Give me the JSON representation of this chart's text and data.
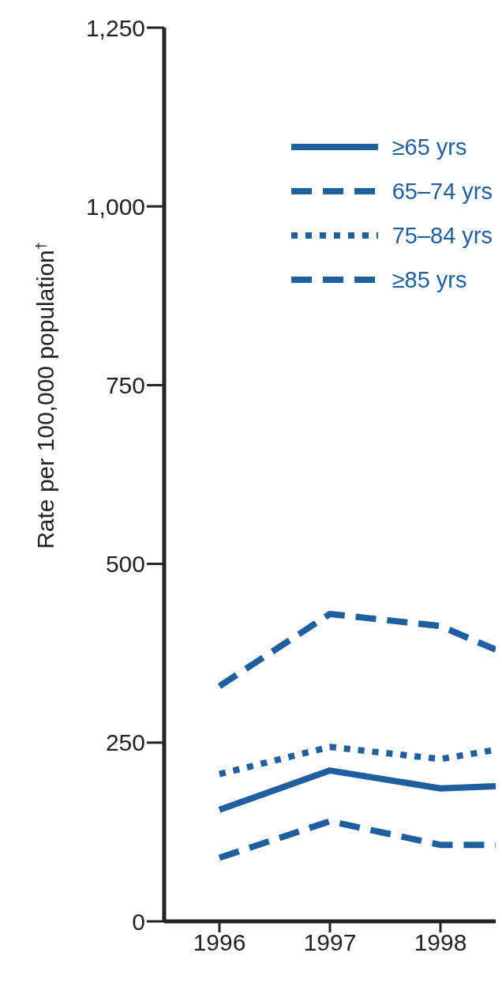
{
  "chart_data": {
    "type": "line",
    "ylabel": "Rate per 100,000 population$^{†}$",
    "x": [
      1996,
      1997,
      1998,
      1998.5
    ],
    "xlim": [
      1995.5,
      1998.5
    ],
    "xticks": [
      1996,
      1997,
      1998
    ],
    "ylim": [
      0,
      1250
    ],
    "yticks": [
      0,
      {
        "value": 250,
        "label": "250"
      },
      {
        "value": 500,
        "label": "500"
      },
      {
        "value": 750,
        "label": "750"
      },
      {
        "value": 1000,
        "label": "1,000"
      },
      {
        "value": 1250,
        "label": "1,250"
      }
    ],
    "grid": false,
    "legend": "top right",
    "marker": "none",
    "series": [
      {
        "name": "≥65 yrs",
        "color": "#1f5f9f",
        "line_style": "solid",
        "values": [
          156,
          211,
          186,
          189
        ]
      },
      {
        "name": "65–74 yrs",
        "color": "#1f5f9f",
        "line_style": "dashed",
        "values": [
          89,
          140,
          107,
          107
        ]
      },
      {
        "name": "75–84 yrs",
        "color": "#1f5f9f",
        "line_style": "dotted",
        "values": [
          206,
          244,
          227,
          240
        ]
      },
      {
        "name": "≥85 yrs",
        "color": "#1f5f9f",
        "line_style": "dashed",
        "values": [
          329,
          430,
          413,
          380
        ]
      }
    ]
  }
}
